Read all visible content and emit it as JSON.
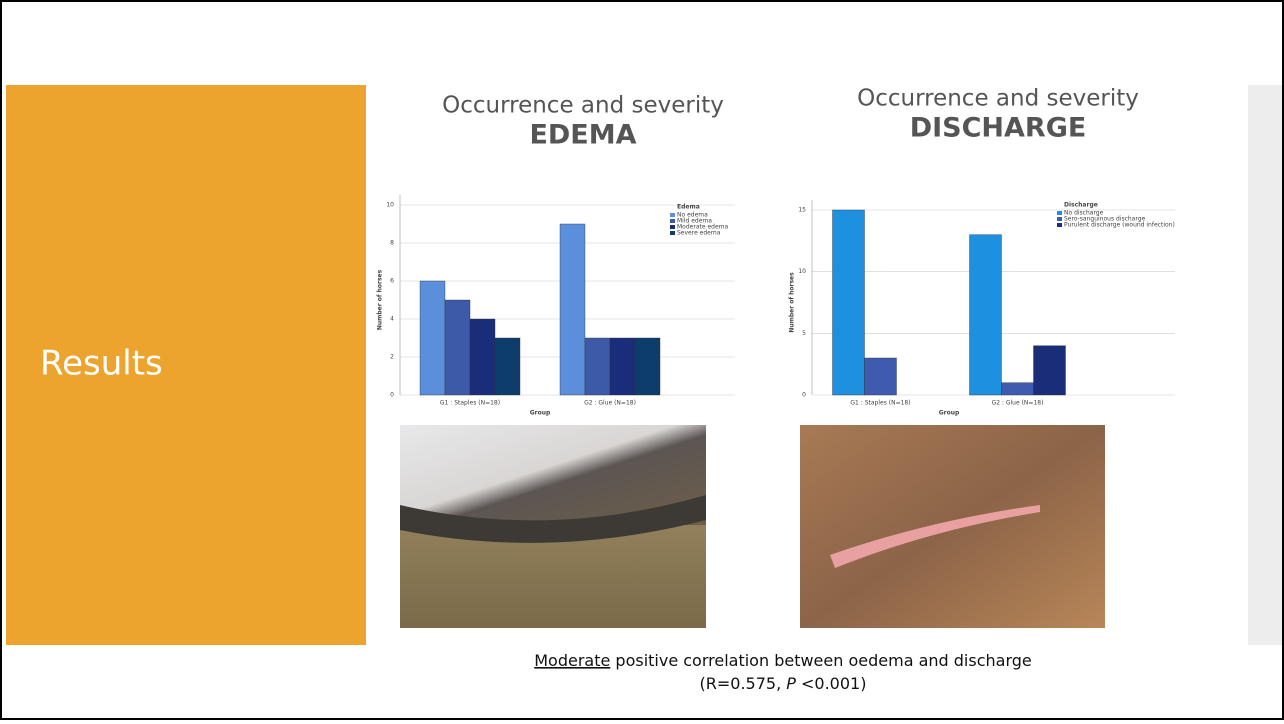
{
  "slide": {
    "title": "Results",
    "headings": [
      {
        "line1": "Occurrence and severity",
        "line2": "EDEMA"
      },
      {
        "line1": "Occurrence and severity",
        "line2": "DISCHARGE"
      }
    ],
    "caption": {
      "line1": {
        "underlined": "Moderate",
        "rest": " positive correlation between  oedema and discharge"
      },
      "line2": {
        "before": "(R=0.575, ",
        "italic": "P",
        "after": " <0.001)"
      }
    }
  },
  "chart_data": [
    {
      "type": "bar",
      "legend_title": "Edema",
      "ylabel": "Number of horses",
      "xlabel": "Group",
      "categories": [
        "G1 : Staples (N=18)",
        "G2 : Glue (N=18)"
      ],
      "ylim": [
        0,
        10
      ],
      "yticks": [
        0,
        2,
        4,
        6,
        8,
        10
      ],
      "grid": true,
      "legend": "upper right",
      "series": [
        {
          "name": "No edema",
          "color": "#5b8fdb",
          "values": [
            6,
            9
          ]
        },
        {
          "name": "Mild edema",
          "color": "#3d5aa8",
          "values": [
            5,
            3
          ]
        },
        {
          "name": "Moderate edema",
          "color": "#1a2d7a",
          "values": [
            4,
            3
          ]
        },
        {
          "name": "Severe edema",
          "color": "#0d3d6b",
          "values": [
            3,
            3
          ]
        }
      ]
    },
    {
      "type": "bar",
      "legend_title": "Discharge",
      "ylabel": "Number of horses",
      "xlabel": "Group",
      "categories": [
        "G1 : Staples (N=18)",
        "G2 : Glue (N=18)"
      ],
      "ylim": [
        0,
        15
      ],
      "yticks": [
        0,
        5,
        10,
        15
      ],
      "grid": true,
      "legend": "upper right",
      "series": [
        {
          "name": "No discharge",
          "color": "#1e90e0",
          "values": [
            15,
            13
          ]
        },
        {
          "name": "Sero-sanguinous discharge",
          "color": "#3f5bb0",
          "values": [
            3,
            1
          ]
        },
        {
          "name": "Purulent discharge (wound infection)",
          "color": "#1a2d78",
          "values": [
            0,
            4
          ]
        }
      ]
    }
  ]
}
